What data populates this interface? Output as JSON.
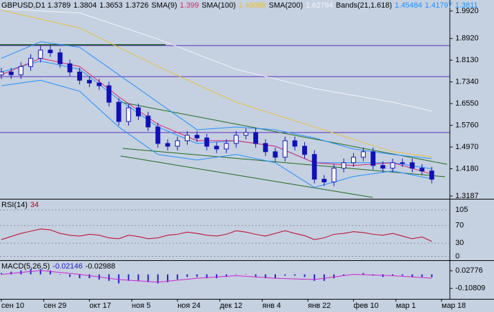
{
  "chart_data": [
    {
      "type": "candlestick",
      "title": "GBPUSD,D1",
      "quote": [
        1.3789,
        1.3804,
        1.3653,
        1.3726
      ],
      "xlim": [
        0,
        135
      ],
      "xticks": [
        {
          "value": 0,
          "label": "сен 10"
        },
        {
          "value": 13,
          "label": "сен 29"
        },
        {
          "value": 27,
          "label": "окт 17"
        },
        {
          "value": 40,
          "label": "ноя 5"
        },
        {
          "value": 54,
          "label": "ноя 24"
        },
        {
          "value": 67,
          "label": "дек 12"
        },
        {
          "value": 80,
          "label": "янв 4"
        },
        {
          "value": 94,
          "label": "янв 22"
        },
        {
          "value": 108,
          "label": "фев 10"
        },
        {
          "value": 121,
          "label": "мар 1"
        },
        {
          "value": 135,
          "label": "мар 18"
        }
      ],
      "ylim": [
        1.3087,
        2.032
      ],
      "yticks": [
        1.992,
        1.892,
        1.813,
        1.734,
        1.655,
        1.576,
        1.497,
        1.418,
        1.3187
      ],
      "ytick_labels": [
        "1.9920",
        "1.8920",
        "1.8130",
        "1.7340",
        "1.6550",
        "1.5760",
        "1.4970",
        "1.4180",
        "1.3187"
      ],
      "color": "#1010b8",
      "x": [
        0,
        3,
        6,
        9,
        12,
        15,
        18,
        21,
        24,
        27,
        30,
        33,
        36,
        39,
        42,
        45,
        48,
        51,
        54,
        57,
        60,
        63,
        66,
        69,
        72,
        75,
        78,
        81,
        84,
        87,
        90,
        93,
        96,
        99,
        102,
        105,
        108,
        111,
        114,
        117,
        120,
        123,
        126,
        129,
        132
      ],
      "open": [
        1.76,
        1.77,
        1.76,
        1.79,
        1.82,
        1.85,
        1.84,
        1.8,
        1.77,
        1.74,
        1.73,
        1.72,
        1.66,
        1.59,
        1.64,
        1.61,
        1.57,
        1.51,
        1.5,
        1.52,
        1.54,
        1.53,
        1.5,
        1.49,
        1.51,
        1.54,
        1.55,
        1.51,
        1.48,
        1.46,
        1.52,
        1.5,
        1.47,
        1.38,
        1.37,
        1.42,
        1.44,
        1.46,
        1.48,
        1.43,
        1.42,
        1.44,
        1.44,
        1.42,
        1.41
      ],
      "high": [
        1.785,
        1.785,
        1.805,
        1.835,
        1.865,
        1.865,
        1.855,
        1.815,
        1.785,
        1.755,
        1.745,
        1.735,
        1.675,
        1.655,
        1.655,
        1.625,
        1.585,
        1.525,
        1.535,
        1.555,
        1.555,
        1.545,
        1.515,
        1.525,
        1.555,
        1.565,
        1.565,
        1.525,
        1.495,
        1.535,
        1.535,
        1.515,
        1.485,
        1.395,
        1.435,
        1.455,
        1.475,
        1.495,
        1.495,
        1.445,
        1.455,
        1.455,
        1.455,
        1.435,
        1.425
      ],
      "low": [
        1.745,
        1.745,
        1.745,
        1.775,
        1.805,
        1.825,
        1.785,
        1.755,
        1.725,
        1.715,
        1.705,
        1.645,
        1.575,
        1.575,
        1.595,
        1.555,
        1.495,
        1.485,
        1.485,
        1.505,
        1.515,
        1.485,
        1.475,
        1.475,
        1.495,
        1.525,
        1.495,
        1.465,
        1.445,
        1.445,
        1.485,
        1.455,
        1.365,
        1.355,
        1.355,
        1.405,
        1.425,
        1.445,
        1.415,
        1.405,
        1.405,
        1.425,
        1.405,
        1.395,
        1.365
      ],
      "close": [
        1.77,
        1.76,
        1.79,
        1.82,
        1.85,
        1.84,
        1.8,
        1.77,
        1.74,
        1.73,
        1.72,
        1.66,
        1.59,
        1.64,
        1.61,
        1.57,
        1.51,
        1.5,
        1.52,
        1.54,
        1.53,
        1.5,
        1.49,
        1.51,
        1.54,
        1.55,
        1.51,
        1.48,
        1.46,
        1.52,
        1.5,
        1.47,
        1.38,
        1.37,
        1.42,
        1.44,
        1.46,
        1.48,
        1.43,
        1.42,
        1.44,
        1.44,
        1.42,
        1.41,
        1.38
      ],
      "series": [
        {
          "name": "SMA(9)",
          "color": "#e0206a",
          "x": [
            0,
            12,
            24,
            36,
            48,
            60,
            72,
            84,
            96,
            108,
            120,
            132
          ],
          "values": [
            1.76,
            1.82,
            1.79,
            1.68,
            1.58,
            1.52,
            1.52,
            1.5,
            1.44,
            1.43,
            1.44,
            1.399
          ],
          "last": 1.399
        },
        {
          "name": "SMA(100)",
          "color": "#e6c23c",
          "x": [
            0,
            24,
            48,
            72,
            96,
            120,
            132
          ],
          "values": [
            1.995,
            1.93,
            1.79,
            1.66,
            1.57,
            1.48,
            1.46088
          ],
          "last": 1.46088
        },
        {
          "name": "SMA(200)",
          "color": "#f4f4fa",
          "x": [
            0,
            24,
            48,
            72,
            96,
            120,
            132
          ],
          "values": [
            2.0,
            1.985,
            1.89,
            1.78,
            1.71,
            1.66,
            1.62794
          ],
          "last": 1.62794
        }
      ],
      "bands": {
        "name": "Bands(21,1.618)",
        "color": "#1e90ff",
        "x": [
          0,
          12,
          24,
          36,
          48,
          60,
          72,
          84,
          96,
          108,
          120,
          132
        ],
        "upper": [
          1.82,
          1.88,
          1.86,
          1.76,
          1.66,
          1.56,
          1.57,
          1.56,
          1.53,
          1.49,
          1.47,
          1.45484
        ],
        "middle": [
          1.77,
          1.81,
          1.78,
          1.67,
          1.57,
          1.51,
          1.52,
          1.5,
          1.44,
          1.44,
          1.44,
          1.41797
        ],
        "lower": [
          1.72,
          1.74,
          1.7,
          1.57,
          1.47,
          1.45,
          1.47,
          1.44,
          1.35,
          1.39,
          1.41,
          1.3811
        ],
        "last": [
          1.45484,
          1.41797,
          1.3811
        ]
      }
    },
    {
      "type": "line",
      "title": "RSI(14)",
      "last": 34,
      "color": "#c00020",
      "ylim": [
        -8.5,
        127
      ],
      "yticks": [
        105,
        70,
        30,
        0
      ],
      "values": [
        38,
        45,
        52,
        57,
        62,
        60,
        52,
        48,
        46,
        50,
        48,
        42,
        40,
        48,
        45,
        40,
        42,
        48,
        50,
        55,
        52,
        48,
        46,
        50,
        58,
        55,
        50,
        46,
        52,
        58,
        52,
        47,
        38,
        42,
        50,
        52,
        56,
        54,
        50,
        48,
        52,
        46,
        40,
        44,
        34
      ]
    },
    {
      "type": "bar",
      "title": "MACD(5,26,5)",
      "last": [
        -0.02146,
        -0.02988
      ],
      "color": "#2020d0",
      "signal_color": "#d020d0",
      "ylim": [
        -0.1842,
        0.0984
      ],
      "yticks": [
        0.02776,
        -0.10809
      ],
      "values": [
        0.01,
        0.02,
        0.03,
        0.04,
        0.04,
        0.03,
        0.0,
        -0.02,
        -0.03,
        -0.03,
        -0.04,
        -0.05,
        -0.07,
        -0.05,
        -0.05,
        -0.06,
        -0.07,
        -0.06,
        -0.04,
        -0.02,
        -0.02,
        -0.03,
        -0.03,
        -0.02,
        0.0,
        0.0,
        -0.02,
        -0.03,
        -0.03,
        -0.01,
        -0.01,
        -0.02,
        -0.05,
        -0.05,
        -0.03,
        -0.01,
        0.0,
        0.01,
        -0.01,
        -0.02,
        -0.01,
        -0.01,
        -0.02,
        -0.02,
        -0.02146
      ],
      "signal_x": [
        0,
        12,
        24,
        36,
        48,
        60,
        72,
        84,
        96,
        108,
        120,
        132
      ],
      "signal": [
        0.0,
        0.03,
        0.0,
        -0.04,
        -0.06,
        -0.03,
        -0.01,
        -0.03,
        -0.04,
        0.0,
        -0.01,
        -0.02988
      ]
    }
  ]
}
